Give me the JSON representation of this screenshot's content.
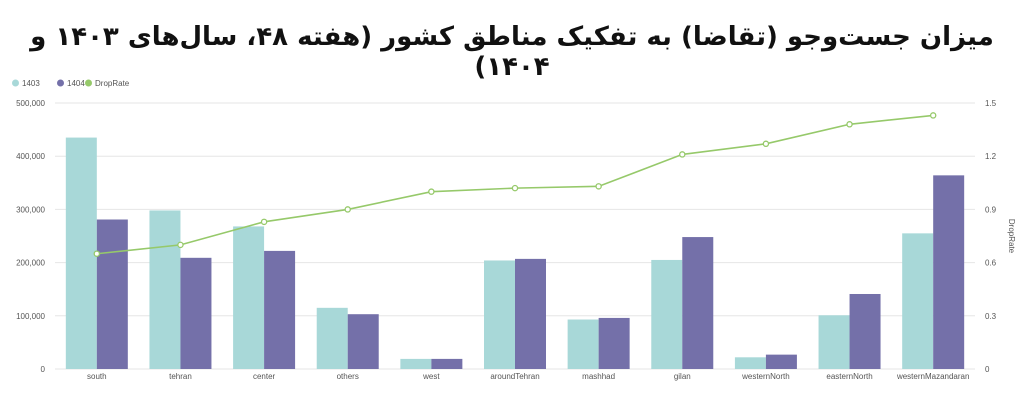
{
  "chart_data": {
    "type": "bar",
    "title": "میزان جست‌وجو (تقاضا) به تفکیک مناطق کشور (هفته ۴۸، سال‌های ۱۴۰۳ و ۱۴۰۴)",
    "categories": [
      "south",
      "tehran",
      "center",
      "others",
      "west",
      "aroundTehran",
      "mashhad",
      "gilan",
      "westernNorth",
      "easternNorth",
      "westernMazandaran"
    ],
    "series": [
      {
        "name": "1403",
        "type": "bar",
        "axis": "left",
        "color": "#a8d8d8",
        "values": [
          435000,
          298000,
          268000,
          115000,
          19000,
          204000,
          93000,
          205000,
          22000,
          101000,
          255000
        ]
      },
      {
        "name": "1404",
        "type": "bar",
        "axis": "left",
        "color": "#7470a9",
        "values": [
          281000,
          209000,
          222000,
          103000,
          19000,
          207000,
          96000,
          248000,
          27000,
          141000,
          364000
        ]
      },
      {
        "name": "DropRate",
        "type": "line",
        "axis": "right",
        "color": "#96c96a",
        "values": [
          0.65,
          0.7,
          0.83,
          0.9,
          1.0,
          1.02,
          1.03,
          1.21,
          1.27,
          1.38,
          1.43
        ]
      }
    ],
    "y_left": {
      "ylim": [
        0,
        500000
      ],
      "ticks": [
        "0",
        "100,000",
        "200,000",
        "300,000",
        "400,000",
        "500,000"
      ],
      "tick_values": [
        0,
        100000,
        200000,
        300000,
        400000,
        500000
      ]
    },
    "y_right": {
      "label": "DropRate",
      "ylim": [
        0,
        1.5
      ],
      "ticks": [
        "0",
        "0.3",
        "0.6",
        "0.9",
        "1.2",
        "1.5"
      ],
      "tick_values": [
        0,
        0.3,
        0.6,
        0.9,
        1.2,
        1.5
      ]
    },
    "legend": {
      "placement": "top-left",
      "items": [
        "1403",
        "1404",
        "DropRate"
      ]
    },
    "grid": true
  }
}
